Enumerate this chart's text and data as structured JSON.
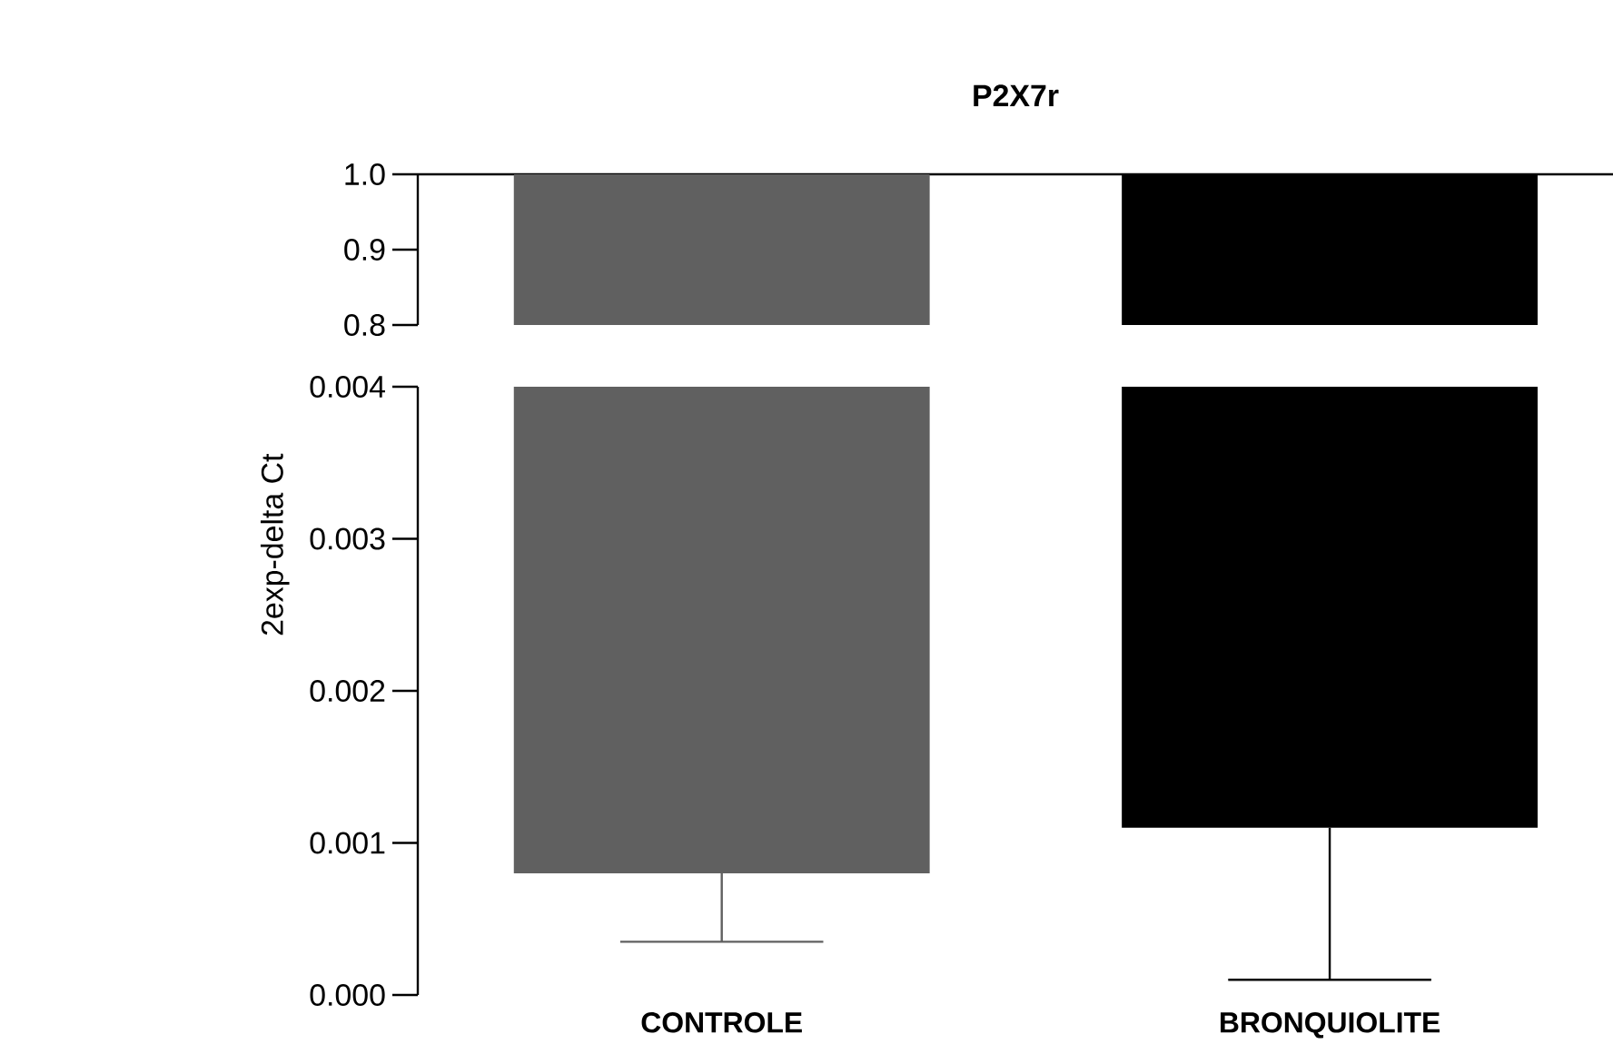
{
  "chart_data": [
    {
      "type": "bar",
      "title": "P2X7r",
      "colors": [
        "#606060",
        "#000000"
      ],
      "base": [
        1.0,
        1.0
      ],
      "values": [
        -0.2,
        -0.2
      ],
      "ylim": [
        0.8,
        1.0
      ],
      "yticks": [
        0.8,
        0.9,
        {
          "value": 1.0,
          "label": "1.0"
        }
      ],
      "tick_labels": "y"
    },
    {
      "type": "bar",
      "ylabel": "2exp-delta Ct",
      "categories": [
        "CONTROLE",
        "BRONQUIOLITE"
      ],
      "colors": [
        "#606060",
        "#000000"
      ],
      "base": [
        0.004,
        0.004
      ],
      "values": [
        -0.0032,
        -0.0029
      ],
      "errors": [
        [
          0.00035,
          0.0008
        ],
        [
          0.0001,
          0.0011
        ]
      ],
      "ylim": [
        0,
        0.004
      ],
      "yticks": [
        {
          "value": 0,
          "label": "0.000"
        },
        0.001,
        0.002,
        0.003,
        0.004
      ]
    }
  ]
}
